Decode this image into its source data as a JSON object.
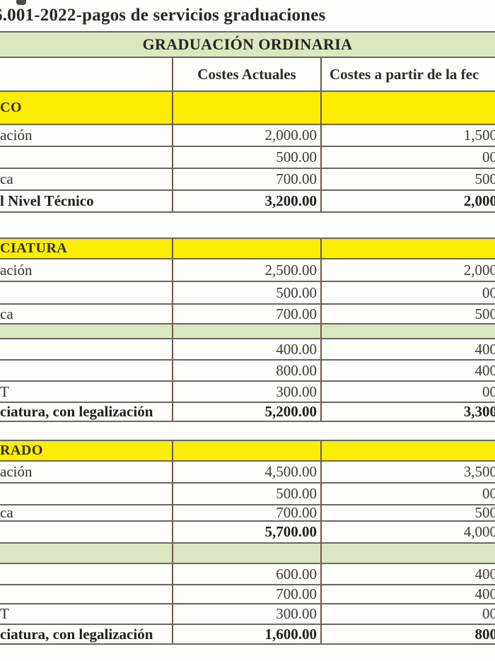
{
  "document": {
    "title_fragment": "6.001-2022-pagos de servicios graduaciones",
    "stray_mark": "ink-fragment-of-cropped-line"
  },
  "table": {
    "main_header": "GRADUACIÓN ORDINARIA",
    "columns": {
      "label": "",
      "current": "Costes Actuales",
      "upcoming": "Costes a partir de la fec"
    },
    "sections": [
      {
        "band": "CO",
        "rows": [
          {
            "type": "data",
            "label": "ación",
            "current": "2,000.00",
            "upcoming": "1,500"
          },
          {
            "type": "data",
            "label": "",
            "current": "500.00",
            "upcoming": "00"
          },
          {
            "type": "data",
            "label": "ca",
            "current": "700.00",
            "upcoming": "500"
          },
          {
            "type": "data",
            "label": "l Nivel Técnico",
            "current": "3,200.00",
            "upcoming": "2,000",
            "bold_label": true,
            "bold_current": true,
            "bold_upcoming": true
          }
        ]
      },
      {
        "band": "CIATURA",
        "rows": [
          {
            "type": "data",
            "label": "ación",
            "current": "2,500.00",
            "upcoming": "2,000"
          },
          {
            "type": "data",
            "label": "",
            "current": "500.00",
            "upcoming": "00"
          },
          {
            "type": "data",
            "label": "ca",
            "current": "700.00",
            "upcoming": "500"
          },
          {
            "type": "spacer"
          },
          {
            "type": "data",
            "label": "",
            "current": "400.00",
            "upcoming": "400"
          },
          {
            "type": "data",
            "label": "",
            "current": "800.00",
            "upcoming": "400"
          },
          {
            "type": "data",
            "label": "T",
            "current": "300.00",
            "upcoming": "00"
          },
          {
            "type": "data",
            "label": "ciatura, con legalización",
            "current": "5,200.00",
            "upcoming": "3,300",
            "bold_label": true,
            "bold_current": true,
            "bold_upcoming": true
          }
        ]
      },
      {
        "band": "RADO",
        "rows": [
          {
            "type": "data",
            "label": "ación",
            "current": "4,500.00",
            "upcoming": "3,500"
          },
          {
            "type": "data",
            "label": "",
            "current": "500.00",
            "upcoming": "00"
          },
          {
            "type": "data",
            "label": "ca",
            "current": "700.00",
            "upcoming": "500"
          },
          {
            "type": "data",
            "label": "",
            "current": "5,700.00",
            "upcoming": "4,000",
            "bold_current": true
          },
          {
            "type": "spacer"
          },
          {
            "type": "data",
            "label": "",
            "current": "600.00",
            "upcoming": "400"
          },
          {
            "type": "data",
            "label": "",
            "current": "700.00",
            "upcoming": "400"
          },
          {
            "type": "data",
            "label": "T",
            "current": "300.00",
            "upcoming": "00"
          },
          {
            "type": "data",
            "label": "ciatura, con legalización",
            "current": "1,600.00",
            "upcoming": "800",
            "bold_label": true,
            "bold_current": true,
            "bold_upcoming": true
          }
        ]
      }
    ]
  },
  "colors": {
    "band_yellow": "#fcee00",
    "band_green": "#dbe7c0",
    "border_horizontal": "#6b675e",
    "border_vertical": "#74564a"
  }
}
